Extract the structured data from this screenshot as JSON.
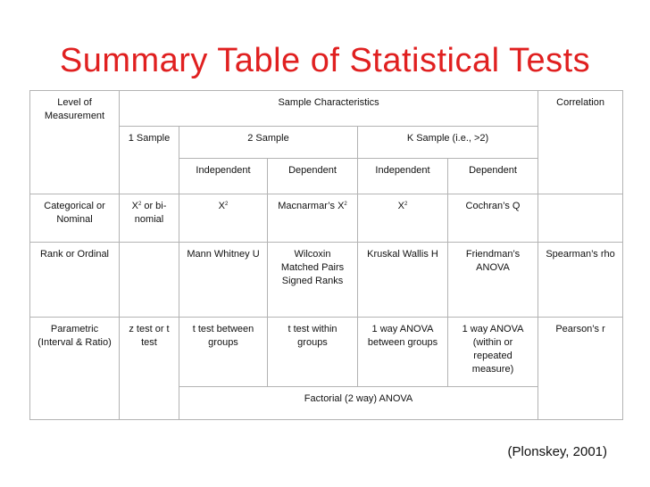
{
  "title": "Summary Table of Statistical Tests",
  "citation": "(Plonskey, 2001)",
  "table": {
    "level_header": "Level of Measurement",
    "sample_header": "Sample Characteristics",
    "correlation_header": "Correlation",
    "one_sample": "1 Sample",
    "two_sample": "2 Sample",
    "k_sample": "K Sample (i.e., >2)",
    "independent": "Independent",
    "dependent": "Dependent",
    "rows": {
      "categorical": {
        "level": "Categorical or Nominal",
        "one_sample_prefix": "X",
        "one_sample_sup": "2",
        "one_sample_suffix": " or bi-nomial",
        "two_indep": "X",
        "two_indep_sup": "2",
        "two_dep": "Macnarmar’s X",
        "two_dep_sup": "2",
        "k_indep": "X",
        "k_indep_sup": "2",
        "k_dep": "Cochran’s Q",
        "correlation": ""
      },
      "rank": {
        "level": "Rank or Ordinal",
        "one_sample": "",
        "two_indep": "Mann Whitney U",
        "two_dep": "Wilcoxin Matched Pairs Signed Ranks",
        "k_indep": "Kruskal Wallis H",
        "k_dep": "Friendman’s ANOVA",
        "correlation": "Spearman’s rho"
      },
      "parametric": {
        "level": "Parametric (Interval & Ratio)",
        "one_sample": "z test or t test",
        "two_indep": "t test between groups",
        "two_dep": "t test within groups",
        "k_indep": "1 way ANOVA between groups",
        "k_dep": "1 way ANOVA (within or repeated measure)",
        "correlation": "Pearson’s r"
      },
      "factorial": "Factorial (2 way) ANOVA"
    }
  }
}
